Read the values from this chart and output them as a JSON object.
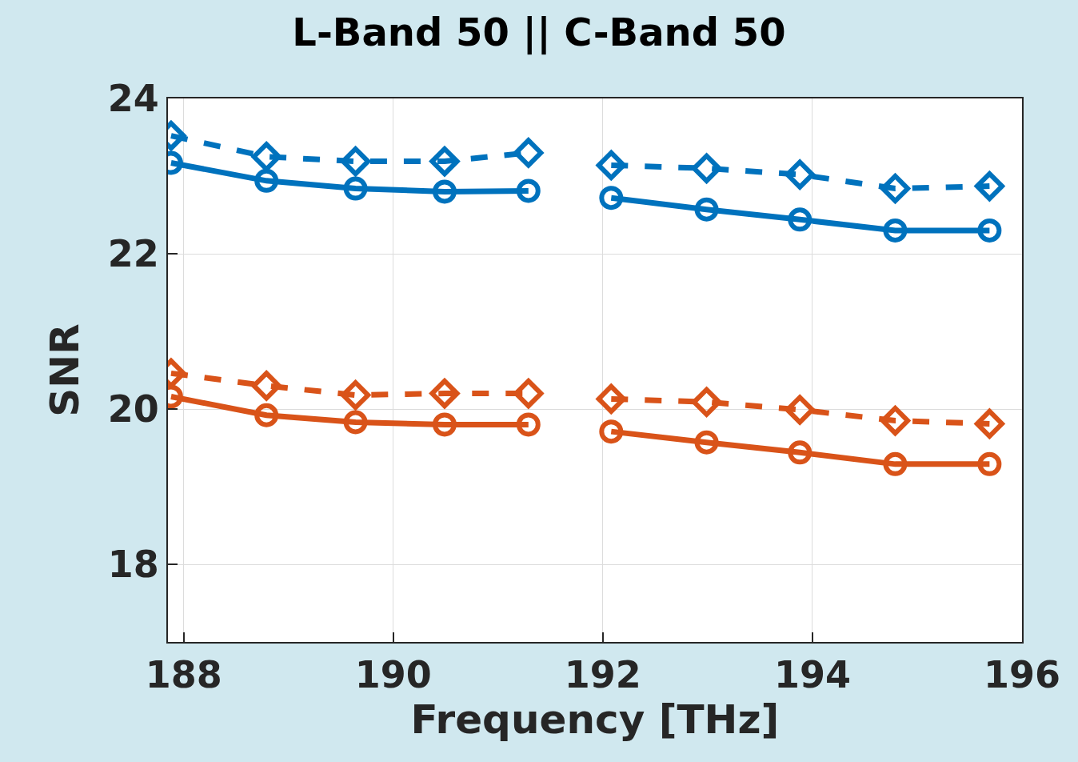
{
  "chart_data": {
    "type": "line",
    "title": "L-Band 50 || C-Band 50",
    "xlabel": "Frequency [THz]",
    "ylabel": "SNR",
    "x": [
      187.88,
      188.79,
      189.64,
      190.49,
      191.29,
      191.7,
      192.08,
      192.99,
      193.88,
      194.79,
      195.69
    ],
    "series": [
      {
        "color": "#0072bd",
        "marker": "circle",
        "line_style": "solid",
        "values": [
          23.17,
          22.94,
          22.84,
          22.8,
          22.81,
          null,
          22.72,
          22.57,
          22.44,
          22.3,
          22.3
        ]
      },
      {
        "color": "#0072bd",
        "marker": "diamond",
        "line_style": "dashed",
        "values": [
          23.52,
          23.25,
          23.19,
          23.19,
          23.3,
          null,
          23.14,
          23.1,
          23.02,
          22.84,
          22.87
        ]
      },
      {
        "color": "#d95319",
        "marker": "circle",
        "line_style": "solid",
        "values": [
          20.16,
          19.92,
          19.83,
          19.8,
          19.8,
          null,
          19.71,
          19.57,
          19.44,
          19.29,
          19.29
        ]
      },
      {
        "color": "#d95319",
        "marker": "diamond",
        "line_style": "dashed",
        "values": [
          20.46,
          20.3,
          20.18,
          20.2,
          20.2,
          null,
          20.13,
          20.09,
          19.99,
          19.85,
          19.81
        ]
      }
    ],
    "xlim": [
      187.85,
      196
    ],
    "xticks": [
      188,
      190,
      192,
      194,
      196
    ],
    "ylim": [
      17,
      24
    ],
    "yticks": [
      18,
      20,
      22,
      24
    ],
    "grid": true
  }
}
